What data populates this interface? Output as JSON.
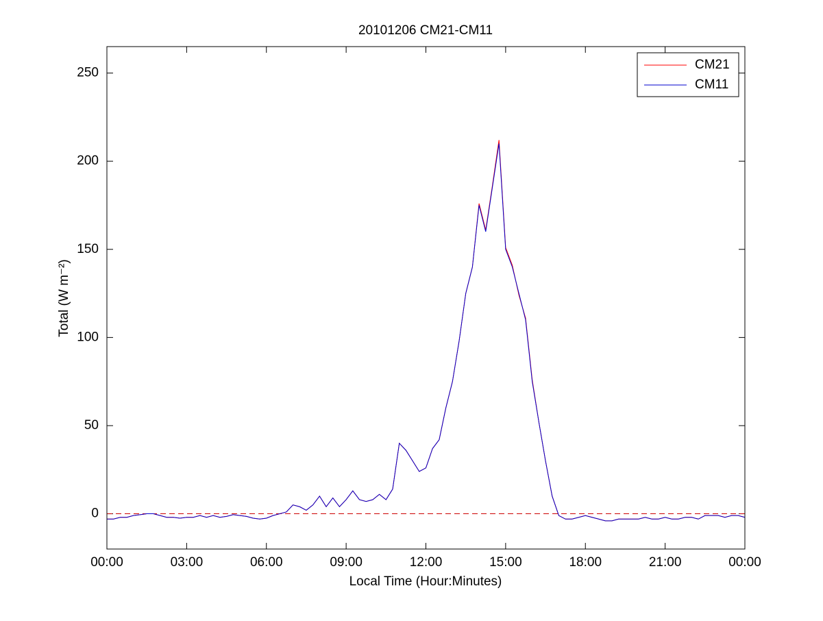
{
  "chart_data": {
    "type": "line",
    "title": "20101206 CM21-CM11",
    "x_label": "Local Time (Hour:Minutes)",
    "y_label": "Total (W m⁻²)",
    "x": [
      0,
      0.25,
      0.5,
      0.75,
      1,
      1.25,
      1.5,
      1.75,
      2,
      2.25,
      2.5,
      2.75,
      3,
      3.25,
      3.5,
      3.75,
      4,
      4.25,
      4.5,
      4.75,
      5,
      5.25,
      5.5,
      5.75,
      6,
      6.25,
      6.5,
      6.75,
      7,
      7.25,
      7.5,
      7.75,
      8,
      8.25,
      8.5,
      8.75,
      9,
      9.25,
      9.5,
      9.75,
      10,
      10.25,
      10.5,
      10.75,
      11,
      11.25,
      11.5,
      11.75,
      12,
      12.25,
      12.5,
      12.75,
      13,
      13.25,
      13.5,
      13.75,
      14,
      14.25,
      14.5,
      14.75,
      15,
      15.25,
      15.5,
      15.75,
      16,
      16.25,
      16.5,
      16.75,
      17,
      17.25,
      17.5,
      17.75,
      18,
      18.25,
      18.5,
      18.75,
      19,
      19.25,
      19.5,
      19.75,
      20,
      20.25,
      20.5,
      20.75,
      21,
      21.25,
      21.5,
      21.75,
      22,
      22.25,
      22.5,
      22.75,
      23,
      23.25,
      23.5,
      23.75,
      24
    ],
    "series": [
      {
        "name": "CM21",
        "color": "#ff0000",
        "values": [
          -3,
          -3,
          -2,
          -2,
          -1,
          -0.5,
          0,
          0,
          -1,
          -2,
          -2,
          -2.5,
          -2,
          -2,
          -1,
          -2,
          -1,
          -2,
          -1.5,
          -0.5,
          -1,
          -1.5,
          -2.5,
          -3,
          -2.5,
          -1,
          0,
          1,
          5,
          4,
          2,
          5,
          10,
          4,
          9,
          4,
          8,
          13,
          8,
          7,
          8,
          11,
          8,
          14,
          40,
          36,
          30,
          24,
          26,
          37,
          42,
          60,
          75,
          98,
          125,
          140,
          176,
          161,
          186,
          212,
          151,
          141,
          124,
          111,
          76,
          52,
          30,
          10,
          -1,
          -3,
          -3,
          -2,
          -1,
          -2,
          -3,
          -4,
          -4,
          -3,
          -3,
          -3,
          -3,
          -2,
          -3,
          -3,
          -2,
          -3,
          -3,
          -2,
          -2,
          -3,
          -1,
          -1,
          -1,
          -2,
          -1,
          -1,
          -2
        ]
      },
      {
        "name": "CM11",
        "color": "#0000cc",
        "values": [
          -3,
          -3,
          -2,
          -2,
          -1,
          -0.5,
          0,
          0,
          -1,
          -2,
          -2,
          -2.5,
          -2,
          -2,
          -1,
          -2,
          -1,
          -2,
          -1.5,
          -0.5,
          -1,
          -1.5,
          -2.5,
          -3,
          -2.5,
          -1,
          0,
          1,
          5,
          4,
          2,
          5,
          10,
          4,
          9,
          4,
          8,
          13,
          8,
          7,
          8,
          11,
          8,
          14,
          40,
          36,
          30,
          24,
          26,
          37,
          42,
          60,
          75,
          98,
          125,
          140,
          175,
          160,
          185,
          210,
          150,
          140,
          125,
          110,
          75,
          52,
          30,
          10,
          -1,
          -3,
          -3,
          -2,
          -1,
          -2,
          -3,
          -4,
          -4,
          -3,
          -3,
          -3,
          -3,
          -2,
          -3,
          -3,
          -2,
          -3,
          -3,
          -2,
          -2,
          -3,
          -1,
          -1,
          -1,
          -2,
          -1,
          -1,
          -2
        ]
      }
    ],
    "xlim": [
      0,
      24
    ],
    "xticks": [
      {
        "value": 0,
        "label": "00:00"
      },
      {
        "value": 3,
        "label": "03:00"
      },
      {
        "value": 6,
        "label": "06:00"
      },
      {
        "value": 9,
        "label": "09:00"
      },
      {
        "value": 12,
        "label": "12:00"
      },
      {
        "value": 15,
        "label": "15:00"
      },
      {
        "value": 18,
        "label": "18:00"
      },
      {
        "value": 21,
        "label": "21:00"
      },
      {
        "value": 24,
        "label": "00:00"
      }
    ],
    "ylim": [
      -20,
      265
    ],
    "yticks": [
      0,
      50,
      100,
      150,
      200,
      250
    ],
    "hline": 0,
    "hline_color": "#cc0000",
    "legend": "upper right",
    "grid": false
  }
}
